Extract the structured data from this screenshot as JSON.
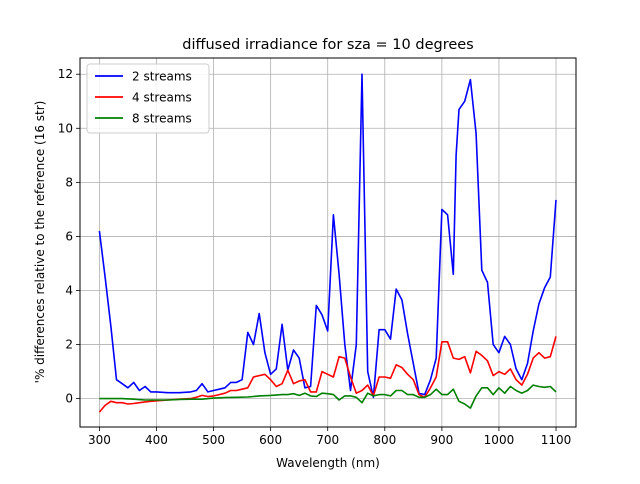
{
  "chart_data": {
    "type": "line",
    "title": "diffused irradiance for sza = 10 degrees",
    "xlabel": "Wavelength (nm)",
    "ylabel": "'% differences relative to the reference (16 str)",
    "xlim": [
      266,
      1135
    ],
    "ylim": [
      -1.05,
      12.6
    ],
    "xticks": [
      300,
      400,
      500,
      600,
      700,
      800,
      900,
      1000,
      1100
    ],
    "yticks": [
      0,
      2,
      4,
      6,
      8,
      10,
      12
    ],
    "grid": true,
    "legend_position": "top-left",
    "series": [
      {
        "name": "2 streams",
        "color": "#0000ff",
        "x": [
          300,
          310,
          320,
          330,
          340,
          350,
          360,
          370,
          380,
          390,
          400,
          420,
          440,
          460,
          470,
          480,
          490,
          500,
          510,
          520,
          530,
          540,
          550,
          560,
          570,
          580,
          590,
          600,
          610,
          620,
          630,
          640,
          650,
          660,
          670,
          680,
          690,
          700,
          710,
          720,
          730,
          740,
          750,
          760,
          770,
          780,
          790,
          800,
          810,
          820,
          830,
          840,
          850,
          860,
          870,
          880,
          890,
          900,
          910,
          920,
          925,
          930,
          940,
          950,
          960,
          970,
          980,
          990,
          1000,
          1010,
          1020,
          1030,
          1040,
          1050,
          1060,
          1070,
          1080,
          1090,
          1100
        ],
        "y": [
          6.2,
          4.5,
          2.7,
          0.7,
          0.55,
          0.4,
          0.6,
          0.3,
          0.45,
          0.25,
          0.25,
          0.22,
          0.22,
          0.25,
          0.3,
          0.55,
          0.25,
          0.3,
          0.35,
          0.4,
          0.6,
          0.6,
          0.7,
          2.45,
          2.0,
          3.15,
          1.7,
          0.9,
          1.1,
          2.75,
          1.05,
          1.8,
          1.5,
          0.4,
          0.45,
          3.45,
          3.1,
          2.5,
          6.8,
          4.6,
          2.0,
          0.3,
          2.0,
          12.0,
          1.0,
          0.05,
          2.55,
          2.55,
          2.2,
          4.05,
          3.65,
          2.4,
          1.3,
          0.2,
          0.15,
          0.7,
          1.5,
          7.0,
          6.8,
          4.6,
          9.0,
          10.7,
          11.0,
          11.8,
          9.8,
          4.75,
          4.3,
          2.0,
          1.7,
          2.3,
          2.0,
          1.1,
          0.7,
          1.3,
          2.5,
          3.5,
          4.1,
          4.5,
          7.35
        ]
      },
      {
        "name": "4 streams",
        "color": "#ff0000",
        "x": [
          300,
          310,
          320,
          330,
          340,
          350,
          360,
          370,
          380,
          390,
          400,
          420,
          440,
          460,
          470,
          480,
          490,
          500,
          510,
          520,
          530,
          540,
          550,
          560,
          570,
          580,
          590,
          600,
          610,
          620,
          630,
          640,
          650,
          660,
          670,
          680,
          690,
          700,
          710,
          720,
          730,
          740,
          750,
          760,
          770,
          780,
          790,
          800,
          810,
          820,
          830,
          840,
          850,
          860,
          870,
          880,
          890,
          900,
          910,
          920,
          930,
          940,
          950,
          960,
          970,
          980,
          990,
          1000,
          1010,
          1020,
          1030,
          1040,
          1050,
          1060,
          1070,
          1080,
          1090,
          1100
        ],
        "y": [
          -0.5,
          -0.25,
          -0.1,
          -0.15,
          -0.15,
          -0.2,
          -0.18,
          -0.15,
          -0.12,
          -0.1,
          -0.08,
          -0.05,
          -0.02,
          0.0,
          0.05,
          0.12,
          0.08,
          0.1,
          0.15,
          0.2,
          0.3,
          0.3,
          0.35,
          0.4,
          0.8,
          0.85,
          0.9,
          0.7,
          0.45,
          0.55,
          1.05,
          0.55,
          0.65,
          0.7,
          0.25,
          0.25,
          1.0,
          0.9,
          0.8,
          1.55,
          1.5,
          0.8,
          0.2,
          0.3,
          0.5,
          0.1,
          0.8,
          0.8,
          0.75,
          1.25,
          1.15,
          0.9,
          0.7,
          0.15,
          0.05,
          0.4,
          0.8,
          2.1,
          2.1,
          1.5,
          1.45,
          1.55,
          0.95,
          1.75,
          1.6,
          1.4,
          0.85,
          1.0,
          0.9,
          1.1,
          0.7,
          0.5,
          0.9,
          1.5,
          1.7,
          1.5,
          1.55,
          2.3
        ]
      },
      {
        "name": "8 streams",
        "color": "#008000",
        "x": [
          300,
          320,
          340,
          360,
          380,
          400,
          420,
          440,
          460,
          480,
          500,
          520,
          540,
          560,
          570,
          580,
          600,
          620,
          630,
          640,
          650,
          660,
          670,
          680,
          690,
          700,
          710,
          720,
          730,
          740,
          750,
          760,
          770,
          780,
          790,
          800,
          810,
          820,
          830,
          840,
          850,
          860,
          870,
          880,
          890,
          900,
          910,
          920,
          930,
          940,
          950,
          960,
          970,
          980,
          990,
          1000,
          1010,
          1020,
          1030,
          1040,
          1050,
          1060,
          1070,
          1080,
          1090,
          1100
        ],
        "y": [
          0.0,
          0.0,
          0.0,
          -0.02,
          -0.05,
          -0.05,
          -0.05,
          -0.03,
          -0.02,
          -0.02,
          0.02,
          0.04,
          0.05,
          0.06,
          0.08,
          0.1,
          0.12,
          0.15,
          0.15,
          0.18,
          0.12,
          0.2,
          0.1,
          0.08,
          0.2,
          0.18,
          0.15,
          -0.05,
          0.1,
          0.1,
          0.05,
          -0.15,
          0.2,
          0.1,
          0.15,
          0.15,
          0.1,
          0.3,
          0.3,
          0.15,
          0.15,
          0.05,
          0.05,
          0.15,
          0.35,
          0.15,
          0.15,
          0.35,
          -0.1,
          -0.2,
          -0.35,
          0.1,
          0.4,
          0.4,
          0.15,
          0.4,
          0.2,
          0.45,
          0.3,
          0.2,
          0.3,
          0.5,
          0.45,
          0.42,
          0.45,
          0.25
        ]
      }
    ]
  }
}
